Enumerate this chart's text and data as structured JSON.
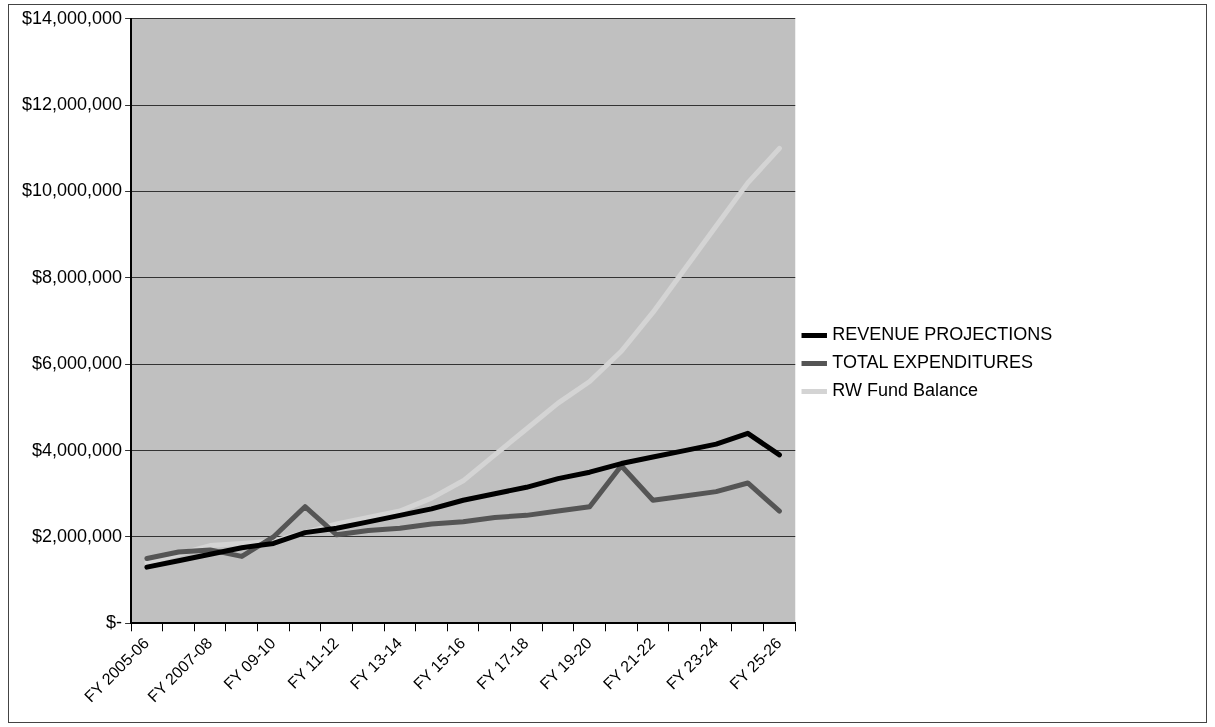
{
  "chart_data": {
    "type": "line",
    "categories": [
      "FY 2005-06",
      null,
      "FY 2007-08",
      null,
      "FY 09-10",
      null,
      "FY 11-12",
      null,
      "FY 13-14",
      null,
      "FY 15-16",
      null,
      "FY 17-18",
      null,
      "FY 19-20",
      null,
      "FY 21-22",
      null,
      "FY 23-24",
      null,
      "FY 25-26"
    ],
    "series": [
      {
        "name": "REVENUE PROJECTIONS",
        "color": "#000000",
        "values": [
          1300000,
          1450000,
          1600000,
          1750000,
          1850000,
          2100000,
          2200000,
          2350000,
          2500000,
          2650000,
          2850000,
          3000000,
          3150000,
          3350000,
          3500000,
          3700000,
          3850000,
          4000000,
          4150000,
          4400000,
          3900000
        ]
      },
      {
        "name": "TOTAL EXPENDITURES",
        "color": "#555555",
        "values": [
          1500000,
          1650000,
          1700000,
          1550000,
          2000000,
          2700000,
          2050000,
          2150000,
          2200000,
          2300000,
          2350000,
          2450000,
          2500000,
          2600000,
          2700000,
          3650000,
          2850000,
          2950000,
          3050000,
          3250000,
          2600000
        ]
      },
      {
        "name": "RW Fund Balance",
        "color": "#d4d4d4",
        "values": [
          1400000,
          1600000,
          1800000,
          1850000,
          1900000,
          2100000,
          2300000,
          2450000,
          2600000,
          2900000,
          3300000,
          3900000,
          4500000,
          5100000,
          5600000,
          6300000,
          7200000,
          8200000,
          9200000,
          10200000,
          11000000
        ]
      }
    ],
    "ylim": [
      0,
      14000000
    ],
    "yticks": [
      {
        "value": 0,
        "label": "$-"
      },
      {
        "value": 2000000,
        "label": "$2,000,000"
      },
      {
        "value": 4000000,
        "label": "$4,000,000"
      },
      {
        "value": 6000000,
        "label": "$6,000,000"
      },
      {
        "value": 8000000,
        "label": "$8,000,000"
      },
      {
        "value": 10000000,
        "label": "$10,000,000"
      },
      {
        "value": 12000000,
        "label": "$12,000,000"
      },
      {
        "value": 14000000,
        "label": "$14,000,000"
      }
    ],
    "grid": "y",
    "legend": "right",
    "marker": "none",
    "line_style": "solid"
  }
}
